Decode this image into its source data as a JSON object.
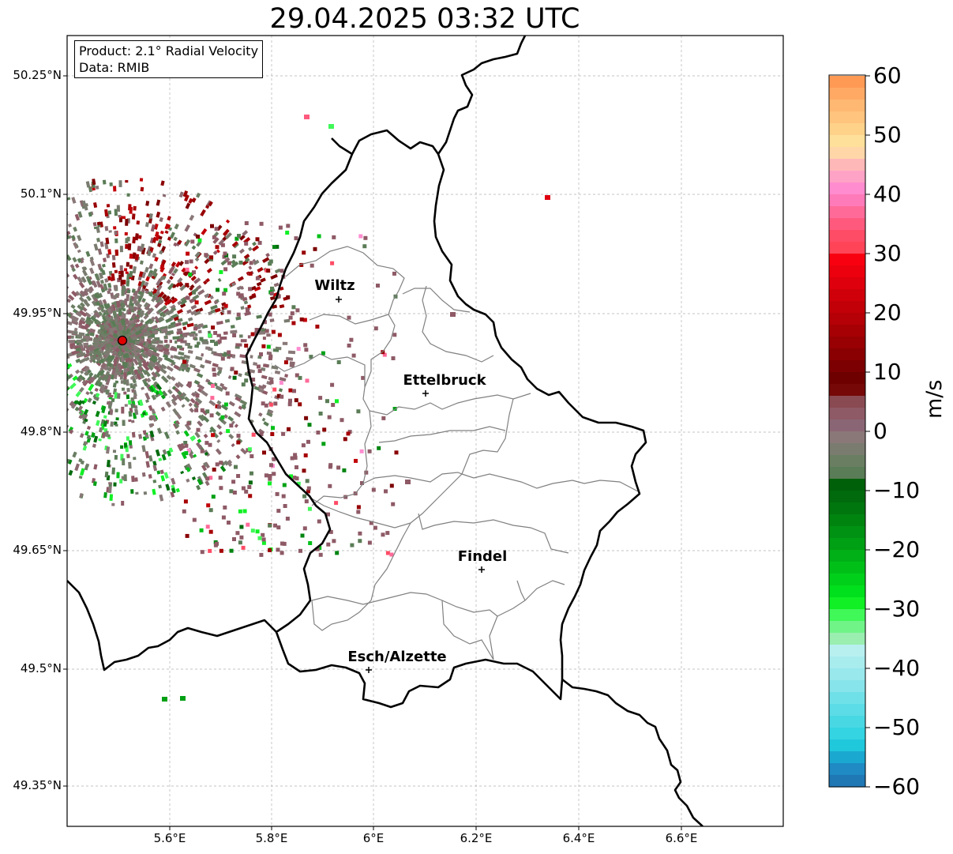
{
  "title": "29.04.2025 03:32 UTC",
  "info": {
    "product": "Product: 2.1° Radial Velocity",
    "data": "Data: RMIB"
  },
  "axes": {
    "lat_labels": [
      "50.25°N",
      "50.1°N",
      "49.95°N",
      "49.8°N",
      "49.65°N",
      "49.5°N",
      "49.35°N"
    ],
    "lon_labels": [
      "5.6°E",
      "5.8°E",
      "6°E",
      "6.2°E",
      "6.4°E",
      "6.6°E"
    ]
  },
  "cities": [
    {
      "name": "Wiltz"
    },
    {
      "name": "Ettelbruck"
    },
    {
      "name": "Findel"
    },
    {
      "name": "Esch/Alzette"
    }
  ],
  "colorbar": {
    "unit": "m/s",
    "ticks": [
      "60",
      "50",
      "40",
      "30",
      "20",
      "10",
      "0",
      "−10",
      "−20",
      "−30",
      "−40",
      "−50",
      "−60"
    ],
    "colors": [
      "#ff9a55",
      "#ffa964",
      "#ffb872",
      "#ffc47e",
      "#ffd28a",
      "#ffe09a",
      "#ffd6a8",
      "#ffb8b8",
      "#ffa3c6",
      "#ff8ccf",
      "#ff7ab8",
      "#ff6a99",
      "#ff5a7e",
      "#ff4c66",
      "#ff4458",
      "#f80010",
      "#ec000e",
      "#de000c",
      "#d0000a",
      "#c20008",
      "#b40006",
      "#a60004",
      "#980003",
      "#8a0002",
      "#7c0001",
      "#6e0000",
      "#760808",
      "#8a4a52",
      "#8e5a66",
      "#8a6674",
      "#8a7878",
      "#7a7c70",
      "#6a7e62",
      "#5a7c56",
      "#00600a",
      "#006a0c",
      "#00760e",
      "#008410",
      "#009212",
      "#00a014",
      "#00b016",
      "#00c018",
      "#00d01a",
      "#00e01c",
      "#10f024",
      "#40f858",
      "#70f488",
      "#9aeeb0",
      "#b8f0f0",
      "#a8ecee",
      "#98e8ec",
      "#86e4ea",
      "#70e0e8",
      "#5cdce6",
      "#48d8e4",
      "#34d4e2",
      "#20c8dc",
      "#1aa8d0",
      "#1f8ac4",
      "#1f77b4"
    ]
  },
  "radar": {
    "site": "radar-site"
  }
}
